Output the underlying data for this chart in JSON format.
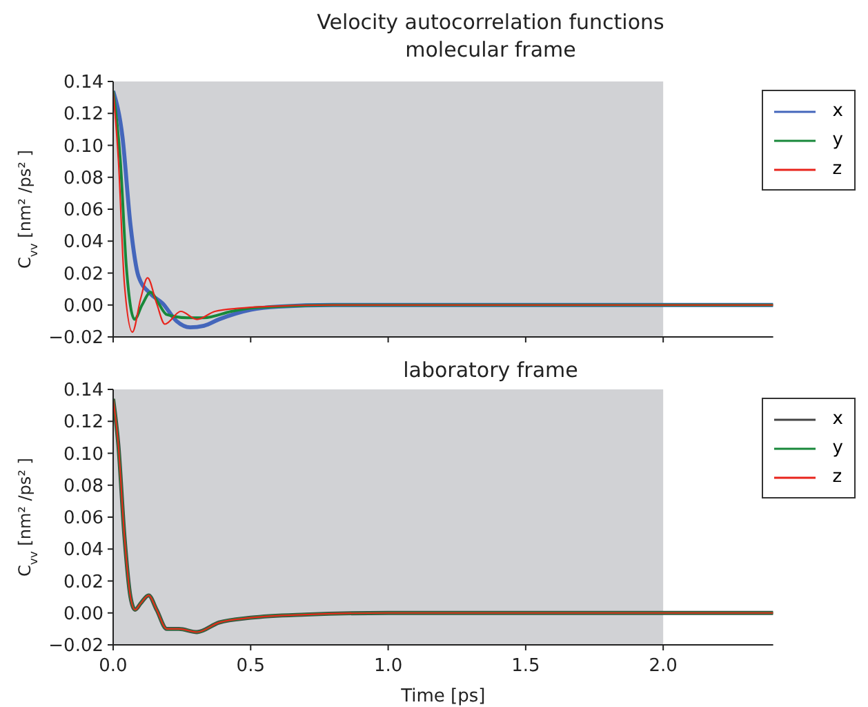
{
  "chart_data": [
    {
      "type": "line",
      "title": "Velocity autocorrelation functions",
      "subtitle": "molecular frame",
      "ylabel": "C$_{vv}$ [nm² /ps² ]",
      "xlim": [
        0,
        2.4
      ],
      "ylim": [
        -0.02,
        0.14
      ],
      "xticks": [
        {
          "value": 0,
          "label": null
        },
        {
          "value": 0.5,
          "label": null
        },
        {
          "value": 1,
          "label": null
        },
        {
          "value": 1.5,
          "label": null
        },
        {
          "value": 2,
          "label": null
        }
      ],
      "yticks": [
        {
          "value": -0.02,
          "label": "−0.02"
        },
        {
          "value": 0,
          "label": "0.00"
        },
        {
          "value": 0.02,
          "label": "0.02"
        },
        {
          "value": 0.04,
          "label": "0.04"
        },
        {
          "value": 0.06,
          "label": "0.06"
        },
        {
          "value": 0.08,
          "label": "0.08"
        },
        {
          "value": 0.1,
          "label": "0.10"
        },
        {
          "value": 0.12,
          "label": "0.12"
        },
        {
          "value": 0.14,
          "label": "0.14"
        }
      ],
      "tick_labels": "y",
      "legend": "top right",
      "marker": "none",
      "line_style": "solid",
      "bands": [
        {
          "axis": "x",
          "from": 0,
          "to": 2,
          "color": "#d1d2d5"
        }
      ],
      "series": [
        {
          "name": "x",
          "color": "#4466bb",
          "x": [
            0,
            0.034,
            0.063,
            0.092,
            0.136,
            0.18,
            0.23,
            0.28,
            0.33,
            0.385,
            0.5,
            0.6,
            0.8,
            1.2,
            2.0,
            2.4
          ],
          "values": [
            0.134,
            0.105,
            0.05,
            0.018,
            0.007,
            0.001,
            -0.01,
            -0.014,
            -0.013,
            -0.009,
            -0.003,
            -0.001,
            0,
            0,
            0,
            0
          ]
        },
        {
          "name": "y",
          "color": "#18883a",
          "x": [
            0,
            0.026,
            0.048,
            0.078,
            0.105,
            0.136,
            0.165,
            0.195,
            0.27,
            0.33,
            0.43,
            0.5,
            0.6,
            0.8,
            1.2,
            2.0,
            2.4
          ],
          "values": [
            0.134,
            0.091,
            0.024,
            -0.009,
            0.0,
            0.008,
            0.001,
            -0.006,
            -0.008,
            -0.008,
            -0.004,
            -0.002,
            -0.001,
            0,
            0,
            0,
            0
          ]
        },
        {
          "name": "z",
          "color": "#e8241c",
          "x": [
            0,
            0.019,
            0.041,
            0.07,
            0.1,
            0.125,
            0.158,
            0.188,
            0.246,
            0.305,
            0.37,
            0.46,
            0.55,
            0.8,
            1.2,
            2.0,
            2.4
          ],
          "values": [
            0.134,
            0.091,
            0.013,
            -0.017,
            0.004,
            0.017,
            0.001,
            -0.012,
            -0.004,
            -0.009,
            -0.004,
            -0.002,
            -0.001,
            0,
            0,
            0,
            0
          ]
        }
      ]
    },
    {
      "type": "line",
      "title": "laboratory frame",
      "xlabel": "Time [ps]",
      "ylabel": "C$_{vv}$ [nm² /ps² ]",
      "xlim": [
        0,
        2.4
      ],
      "ylim": [
        -0.02,
        0.14
      ],
      "xticks": [
        {
          "value": 0,
          "label": "0.0"
        },
        {
          "value": 0.5,
          "label": "0.5"
        },
        {
          "value": 1,
          "label": "1.0"
        },
        {
          "value": 1.5,
          "label": "1.5"
        },
        {
          "value": 2,
          "label": "2.0"
        }
      ],
      "yticks": [
        {
          "value": -0.02,
          "label": "−0.02"
        },
        {
          "value": 0,
          "label": "0.00"
        },
        {
          "value": 0.02,
          "label": "0.02"
        },
        {
          "value": 0.04,
          "label": "0.04"
        },
        {
          "value": 0.06,
          "label": "0.06"
        },
        {
          "value": 0.08,
          "label": "0.08"
        },
        {
          "value": 0.1,
          "label": "0.10"
        },
        {
          "value": 0.12,
          "label": "0.12"
        },
        {
          "value": 0.14,
          "label": "0.14"
        }
      ],
      "legend": "top right",
      "marker": "none",
      "line_style": "solid",
      "bands": [
        {
          "axis": "x",
          "from": 0,
          "to": 2,
          "color": "#d1d2d5"
        }
      ],
      "series": [
        {
          "name": "x",
          "color": "#444444",
          "x": [
            0,
            0.019,
            0.041,
            0.063,
            0.08,
            0.1,
            0.129,
            0.158,
            0.195,
            0.239,
            0.305,
            0.385,
            0.5,
            0.7,
            1.0,
            1.5,
            2.0,
            2.4
          ],
          "values": [
            0.134,
            0.105,
            0.048,
            0.01,
            0.002,
            0.006,
            0.011,
            0.002,
            -0.01,
            -0.01,
            -0.012,
            -0.006,
            -0.003,
            -0.001,
            0,
            0,
            0,
            0
          ]
        },
        {
          "name": "y",
          "color": "#18883a",
          "x": [
            0,
            0.019,
            0.041,
            0.063,
            0.08,
            0.1,
            0.129,
            0.158,
            0.195,
            0.239,
            0.305,
            0.385,
            0.5,
            0.7,
            1.0,
            1.5,
            2.0,
            2.4
          ],
          "values": [
            0.134,
            0.105,
            0.048,
            0.01,
            0.002,
            0.006,
            0.011,
            0.002,
            -0.01,
            -0.01,
            -0.012,
            -0.006,
            -0.003,
            -0.001,
            0,
            0,
            0,
            0
          ]
        },
        {
          "name": "z",
          "color": "#e8241c",
          "x": [
            0,
            0.019,
            0.041,
            0.063,
            0.08,
            0.1,
            0.129,
            0.158,
            0.195,
            0.239,
            0.305,
            0.385,
            0.5,
            0.7,
            1.0,
            1.5,
            2.0,
            2.4
          ],
          "values": [
            0.134,
            0.105,
            0.048,
            0.01,
            0.002,
            0.006,
            0.011,
            0.002,
            -0.01,
            -0.01,
            -0.012,
            -0.006,
            -0.003,
            -0.001,
            0,
            0,
            0,
            0
          ]
        }
      ]
    }
  ]
}
